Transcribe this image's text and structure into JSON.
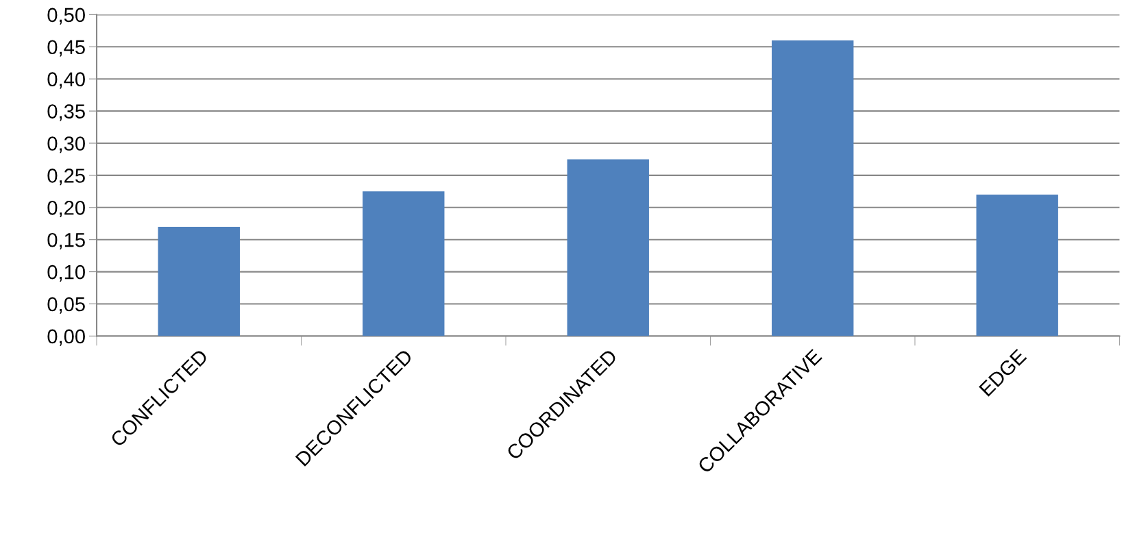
{
  "chart_data": {
    "type": "bar",
    "categories": [
      "CONFLICTED",
      "DECONFLICTED",
      "COORDINATED",
      "COLLABORATIVE",
      "EDGE"
    ],
    "values": [
      0.17,
      0.225,
      0.275,
      0.46,
      0.22
    ],
    "color": "#4f81bd",
    "ylim": [
      0,
      0.5
    ],
    "yticks": [
      {
        "value": 0,
        "label": "0,00"
      },
      {
        "value": 0.05,
        "label": "0,05"
      },
      {
        "value": 0.1,
        "label": "0,10"
      },
      {
        "value": 0.15,
        "label": "0,15"
      },
      {
        "value": 0.2,
        "label": "0,20"
      },
      {
        "value": 0.25,
        "label": "0,25"
      },
      {
        "value": 0.3,
        "label": "0,30"
      },
      {
        "value": 0.35,
        "label": "0,35"
      },
      {
        "value": 0.4,
        "label": "0,40"
      },
      {
        "value": 0.45,
        "label": "0,45"
      },
      {
        "value": 0.5,
        "label": "0,50"
      }
    ],
    "grid": "y",
    "legend": false
  }
}
